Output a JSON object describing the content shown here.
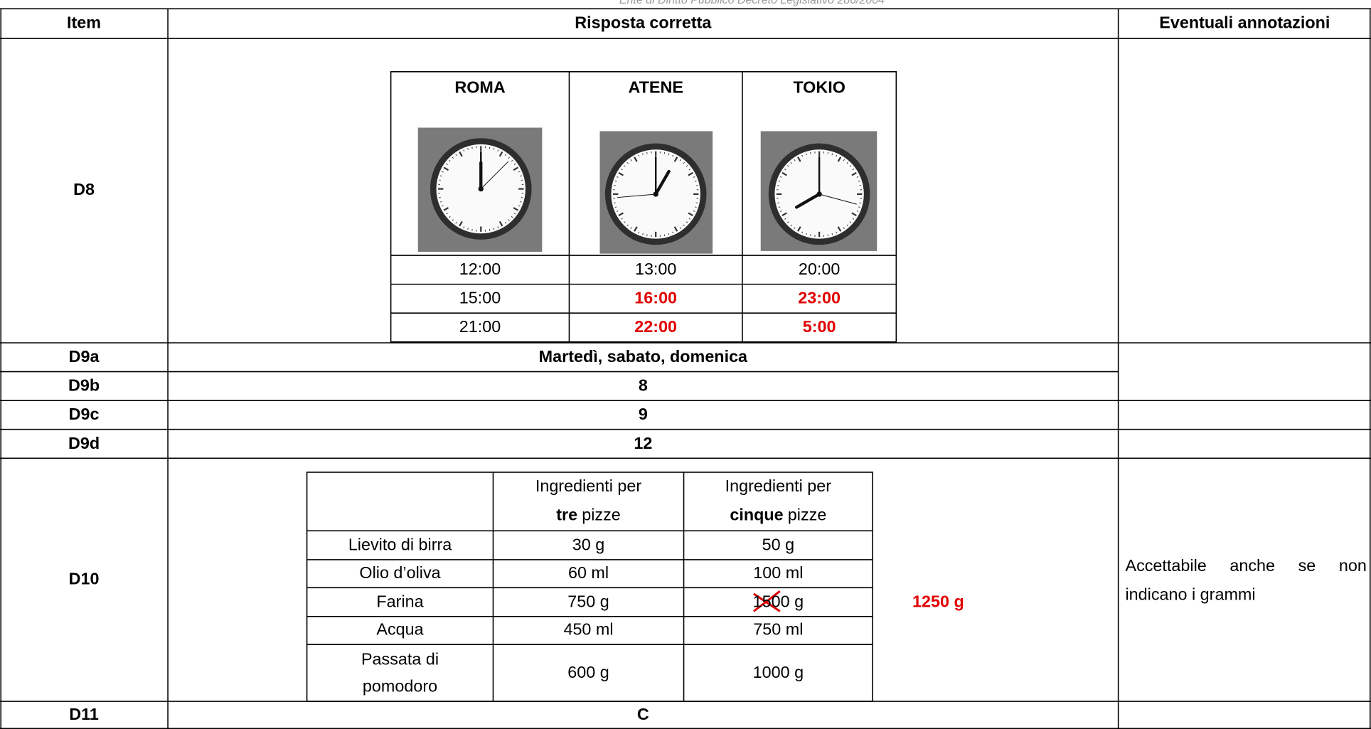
{
  "watermark": "Ente di Diritto Pubblico Decreto Legislativo 286/2004",
  "table": {
    "headers": [
      "Item",
      "Risposta corretta",
      "Eventuali annotazioni"
    ],
    "rows": [
      {
        "item": "D8",
        "clocks": {
          "cities": [
            "ROMA",
            "ATENE",
            "TOKIO"
          ],
          "times": [
            [
              "12:00",
              "13:00",
              "20:00"
            ],
            [
              "15:00",
              "16:00",
              "23:00"
            ],
            [
              "21:00",
              "22:00",
              "5:00"
            ]
          ]
        }
      },
      {
        "item": "D9a",
        "answer": "Martedì, sabato, domenica"
      },
      {
        "item": "D9b",
        "answer": "8"
      },
      {
        "item": "D9c",
        "answer": "9"
      },
      {
        "item": "D9d",
        "answer": "12"
      },
      {
        "item": "D10",
        "pizza": {
          "headers": [
            {
              "text": "Ingredienti per",
              "bold": "tre",
              "rest": "pizze"
            },
            {
              "text": "Ingredienti per",
              "bold": "cinque",
              "rest": "pizze"
            }
          ],
          "rows": [
            [
              "Lievito di birra",
              "30 g",
              "50 g"
            ],
            [
              "Olio d’oliva",
              "60 ml",
              "100 ml"
            ],
            [
              "Farina",
              "750 g",
              "1500 g"
            ],
            [
              "Acqua",
              "450 ml",
              "750 ml"
            ],
            [
              "Passata di pomodoro",
              "600 g",
              "1000 g"
            ]
          ]
        },
        "correction": "1250 g",
        "note": "Accettabile anche se non indicano i grammi"
      },
      {
        "item": "D11",
        "answer": "C"
      }
    ]
  }
}
